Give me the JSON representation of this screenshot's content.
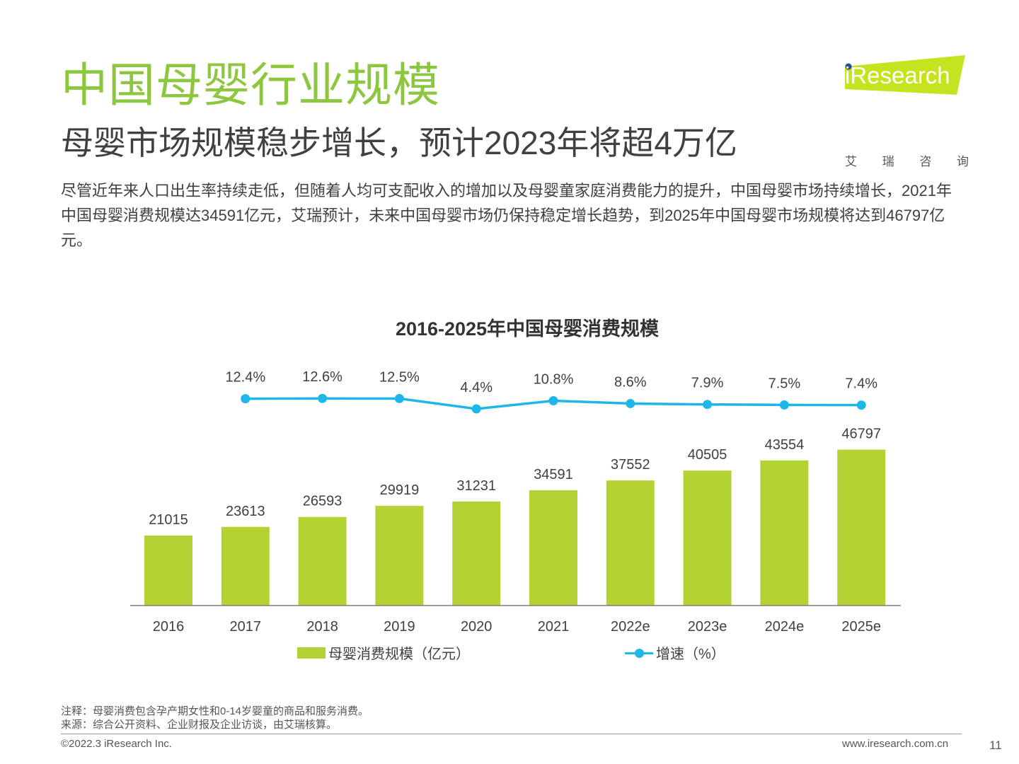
{
  "page": {
    "title": "中国母婴行业规模",
    "subtitle": "母婴市场规模稳步增长，预计2023年将超4万亿",
    "description": "尽管近年来人口出生率持续走低，但随着人均可支配收入的增加以及母婴童家庭消费能力的提升，中国母婴市场持续增长，2021年中国母婴消费规模达34591亿元，艾瑞预计，未来中国母婴市场仍保持稳定增长趋势，到2025年中国母婴市场规模将达到46797亿元。",
    "logo_text": "iResearch",
    "logo_cn": [
      "艾",
      "瑞",
      "咨",
      "询"
    ],
    "note": "注释：母婴消费包含孕产期女性和0-14岁婴童的商品和服务消费。",
    "source": "来源：综合公开资料、企业财报及企业访谈，由艾瑞核算。",
    "copyright": "©2022.3 iResearch Inc.",
    "website": "www.iresearch.com.cn",
    "page_number": "11"
  },
  "colors": {
    "title": "#8dc63f",
    "bar": "#b3d334",
    "line": "#1fb7e8",
    "logo_green": "#c5e31f",
    "logo_dot": "#1f4e9c"
  },
  "chart_data": {
    "type": "bar",
    "title": "2016-2025年中国母婴消费规模",
    "categories": [
      "2016",
      "2017",
      "2018",
      "2019",
      "2020",
      "2021",
      "2022e",
      "2023e",
      "2024e",
      "2025e"
    ],
    "series": [
      {
        "name": "母婴消费规模（亿元）",
        "type": "bar",
        "values": [
          21015,
          23613,
          26593,
          29919,
          31231,
          34591,
          37552,
          40505,
          43554,
          46797
        ],
        "labels": [
          "21015",
          "23613",
          "26593",
          "29919",
          "31231",
          "34591",
          "37552",
          "40505",
          "43554",
          "46797"
        ]
      },
      {
        "name": "增速（%）",
        "type": "line",
        "values": [
          null,
          12.4,
          12.6,
          12.5,
          4.4,
          10.8,
          8.6,
          7.9,
          7.5,
          7.4
        ],
        "labels": [
          null,
          "12.4%",
          "12.6%",
          "12.5%",
          "4.4%",
          "10.8%",
          "8.6%",
          "7.9%",
          "7.5%",
          "7.4%"
        ]
      }
    ],
    "legend_position": "bottom",
    "grid": false
  }
}
